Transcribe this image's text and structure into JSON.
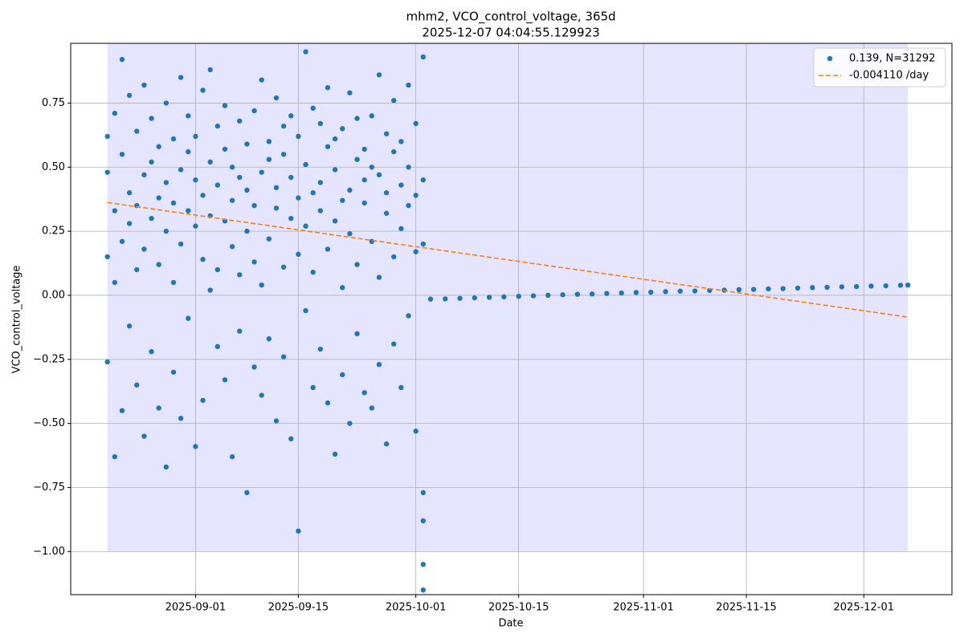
{
  "chart_data": {
    "type": "scatter",
    "title": "mhm2, VCO_control_voltage, 365d",
    "subtitle": "2025-12-07 04:04:55.129923",
    "x_label": "Date",
    "y_label": "VCO_control_voltage",
    "xlim": [
      "2025-08-15",
      "2025-12-13"
    ],
    "ylim": [
      -1.168,
      0.983
    ],
    "xticks": [
      "2025-09-01",
      "2025-09-15",
      "2025-10-01",
      "2025-10-15",
      "2025-11-01",
      "2025-11-15",
      "2025-12-01"
    ],
    "yticks": [
      {
        "value": -1,
        "label": "−1.00"
      },
      {
        "value": -0.75,
        "label": "−0.75"
      },
      {
        "value": -0.5,
        "label": "−0.50"
      },
      {
        "value": -0.25,
        "label": "−0.25"
      },
      {
        "value": 0,
        "label": "0.00"
      },
      {
        "value": 0.25,
        "label": "0.25"
      },
      {
        "value": 0.5,
        "label": "0.50"
      },
      {
        "value": 0.75,
        "label": "0.75"
      }
    ],
    "grid": true,
    "legend": "upper right",
    "shade": {
      "color": "#e5e5ff",
      "x": [
        "2025-08-20",
        "2025-12-07"
      ],
      "y": [
        -1,
        1
      ]
    },
    "series": [
      {
        "name": "0.139, N=31292",
        "color": "#1f77b4",
        "x": [
          "2025-08-20",
          "2025-08-20",
          "2025-08-20",
          "2025-08-20",
          "2025-08-21",
          "2025-08-21",
          "2025-08-21",
          "2025-08-21",
          "2025-08-22",
          "2025-08-22",
          "2025-08-22",
          "2025-08-22",
          "2025-08-23",
          "2025-08-23",
          "2025-08-23",
          "2025-08-23",
          "2025-08-24",
          "2025-08-24",
          "2025-08-24",
          "2025-08-24",
          "2025-08-25",
          "2025-08-25",
          "2025-08-25",
          "2025-08-25",
          "2025-08-26",
          "2025-08-26",
          "2025-08-26",
          "2025-08-26",
          "2025-08-27",
          "2025-08-27",
          "2025-08-27",
          "2025-08-27",
          "2025-08-28",
          "2025-08-28",
          "2025-08-28",
          "2025-08-28",
          "2025-08-29",
          "2025-08-29",
          "2025-08-29",
          "2025-08-29",
          "2025-08-30",
          "2025-08-30",
          "2025-08-30",
          "2025-08-30",
          "2025-08-31",
          "2025-08-31",
          "2025-08-31",
          "2025-08-31",
          "2025-09-01",
          "2025-09-01",
          "2025-09-01",
          "2025-09-01",
          "2025-09-02",
          "2025-09-02",
          "2025-09-02",
          "2025-09-02",
          "2025-09-03",
          "2025-09-03",
          "2025-09-03",
          "2025-09-03",
          "2025-09-04",
          "2025-09-04",
          "2025-09-04",
          "2025-09-04",
          "2025-09-05",
          "2025-09-05",
          "2025-09-05",
          "2025-09-05",
          "2025-09-06",
          "2025-09-06",
          "2025-09-06",
          "2025-09-06",
          "2025-09-07",
          "2025-09-07",
          "2025-09-07",
          "2025-09-07",
          "2025-09-08",
          "2025-09-08",
          "2025-09-08",
          "2025-09-08",
          "2025-09-09",
          "2025-09-09",
          "2025-09-09",
          "2025-09-09",
          "2025-09-10",
          "2025-09-10",
          "2025-09-10",
          "2025-09-10",
          "2025-09-11",
          "2025-09-11",
          "2025-09-11",
          "2025-09-11",
          "2025-09-12",
          "2025-09-12",
          "2025-09-12",
          "2025-09-12",
          "2025-09-13",
          "2025-09-13",
          "2025-09-13",
          "2025-09-13",
          "2025-09-14",
          "2025-09-14",
          "2025-09-14",
          "2025-09-14",
          "2025-09-15",
          "2025-09-15",
          "2025-09-15",
          "2025-09-15",
          "2025-09-16",
          "2025-09-16",
          "2025-09-16",
          "2025-09-16",
          "2025-09-17",
          "2025-09-17",
          "2025-09-17",
          "2025-09-17",
          "2025-09-18",
          "2025-09-18",
          "2025-09-18",
          "2025-09-18",
          "2025-09-19",
          "2025-09-19",
          "2025-09-19",
          "2025-09-19",
          "2025-09-20",
          "2025-09-20",
          "2025-09-20",
          "2025-09-20",
          "2025-09-21",
          "2025-09-21",
          "2025-09-21",
          "2025-09-21",
          "2025-09-22",
          "2025-09-22",
          "2025-09-22",
          "2025-09-22",
          "2025-09-23",
          "2025-09-23",
          "2025-09-23",
          "2025-09-23",
          "2025-09-24",
          "2025-09-24",
          "2025-09-24",
          "2025-09-24",
          "2025-09-25",
          "2025-09-25",
          "2025-09-25",
          "2025-09-25",
          "2025-09-26",
          "2025-09-26",
          "2025-09-26",
          "2025-09-26",
          "2025-09-27",
          "2025-09-27",
          "2025-09-27",
          "2025-09-27",
          "2025-09-28",
          "2025-09-28",
          "2025-09-28",
          "2025-09-28",
          "2025-09-29",
          "2025-09-29",
          "2025-09-29",
          "2025-09-29",
          "2025-09-30",
          "2025-09-30",
          "2025-09-30",
          "2025-09-30",
          "2025-10-01",
          "2025-10-01",
          "2025-10-01",
          "2025-10-01",
          "2025-10-02",
          "2025-10-02",
          "2025-10-02",
          "2025-10-02",
          "2025-10-02",
          "2025-10-02",
          "2025-10-02",
          "2025-10-03",
          "2025-10-05",
          "2025-10-07",
          "2025-10-09",
          "2025-10-11",
          "2025-10-13",
          "2025-10-15",
          "2025-10-17",
          "2025-10-19",
          "2025-10-21",
          "2025-10-23",
          "2025-10-25",
          "2025-10-27",
          "2025-10-29",
          "2025-10-31",
          "2025-11-02",
          "2025-11-04",
          "2025-11-06",
          "2025-11-08",
          "2025-11-10",
          "2025-11-12",
          "2025-11-14",
          "2025-11-16",
          "2025-11-18",
          "2025-11-20",
          "2025-11-22",
          "2025-11-24",
          "2025-11-26",
          "2025-11-28",
          "2025-11-30",
          "2025-12-02",
          "2025-12-04",
          "2025-12-06",
          "2025-12-07"
        ],
        "values": [
          0.48,
          -0.26,
          0.62,
          0.15,
          0.71,
          -0.63,
          0.33,
          0.05,
          0.55,
          -0.45,
          0.92,
          0.21,
          0.4,
          0.78,
          -0.12,
          0.28,
          0.64,
          0.1,
          0.35,
          -0.35,
          0.82,
          -0.55,
          0.47,
          0.18,
          0.3,
          0.69,
          -0.22,
          0.52,
          0.12,
          0.58,
          0.38,
          -0.44,
          0.75,
          -0.67,
          0.25,
          0.44,
          0.61,
          0.05,
          -0.3,
          0.36,
          0.49,
          0.85,
          0.2,
          -0.48,
          0.33,
          0.7,
          -0.09,
          0.56,
          0.45,
          -0.59,
          0.27,
          0.62,
          0.8,
          0.14,
          -0.41,
          0.39,
          0.52,
          0.88,
          0.02,
          0.31,
          0.43,
          -0.2,
          0.66,
          0.1,
          0.57,
          0.29,
          -0.33,
          0.74,
          0.37,
          -0.63,
          0.5,
          0.19,
          0.68,
          0.08,
          -0.14,
          0.46,
          0.25,
          -0.77,
          0.59,
          0.41,
          0.72,
          0.35,
          -0.28,
          0.13,
          0.48,
          0.84,
          0.04,
          -0.39,
          0.6,
          0.22,
          -0.17,
          0.53,
          0.34,
          0.77,
          -0.49,
          0.42,
          0.55,
          0.11,
          0.66,
          -0.24,
          0.46,
          -0.56,
          0.3,
          0.7,
          0.38,
          -0.92,
          0.62,
          0.16,
          0.51,
          0.95,
          -0.06,
          0.27,
          0.73,
          0.4,
          -0.36,
          0.09,
          0.44,
          0.67,
          -0.21,
          0.33,
          0.58,
          0.18,
          0.81,
          -0.42,
          0.29,
          -0.62,
          0.49,
          0.61,
          0.65,
          0.03,
          -0.31,
          0.37,
          0.41,
          0.79,
          -0.5,
          0.24,
          0.53,
          0.12,
          0.69,
          -0.15,
          0.36,
          0.57,
          -0.38,
          0.45,
          0.7,
          0.21,
          -0.44,
          0.5,
          0.47,
          0.86,
          0.07,
          -0.27,
          0.32,
          0.63,
          -0.58,
          0.4,
          0.56,
          0.15,
          0.76,
          -0.19,
          0.43,
          -0.36,
          0.6,
          0.26,
          0.5,
          0.82,
          -0.08,
          0.35,
          0.39,
          -0.53,
          0.67,
          0.17,
          0.45,
          -0.77,
          -1.05,
          -1.15,
          0.93,
          0.2,
          -0.88,
          -0.015,
          -0.014,
          -0.012,
          -0.01,
          -0.008,
          -0.006,
          -0.004,
          -0.002,
          0.0,
          0.002,
          0.004,
          0.005,
          0.007,
          0.009,
          0.011,
          0.012,
          0.014,
          0.016,
          0.017,
          0.019,
          0.02,
          0.022,
          0.023,
          0.025,
          0.026,
          0.028,
          0.03,
          0.031,
          0.033,
          0.034,
          0.036,
          0.037,
          0.039,
          0.04
        ]
      },
      {
        "name": "-0.004110 /day",
        "color": "#ff7f0e",
        "dashed": true,
        "x": [
          "2025-08-20",
          "2025-12-07"
        ],
        "values": [
          0.362,
          -0.085
        ]
      }
    ]
  }
}
